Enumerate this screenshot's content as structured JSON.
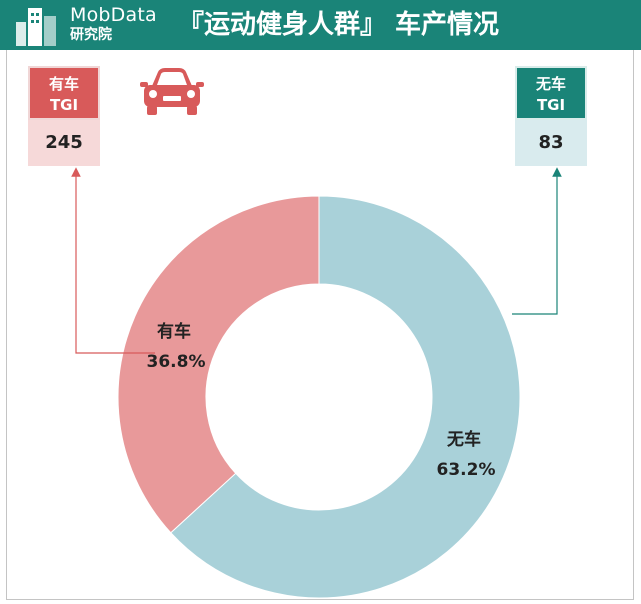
{
  "header": {
    "logo_name": "MobData",
    "logo_sub": "研究院",
    "title": "『运动健身人群』 车产情况"
  },
  "tgi": {
    "has_car": {
      "label_line1": "有车",
      "label_line2": "TGI",
      "value": "245"
    },
    "no_car": {
      "label_line1": "无车",
      "label_line2": "TGI",
      "value": "83"
    }
  },
  "icons": {
    "logo": "building-logo-icon",
    "car": "car-icon"
  },
  "colors": {
    "header_bg": "#1a8478",
    "has_car": "#e8999a",
    "no_car": "#a9d1d9",
    "has_car_accent": "#d85a5a",
    "no_car_accent": "#1a8478"
  },
  "chart_data": {
    "type": "pie",
    "donut": true,
    "series": [
      {
        "name": "有车",
        "value": 36.8,
        "label": "36.8%",
        "color": "#e8999a"
      },
      {
        "name": "无车",
        "value": 63.2,
        "label": "63.2%",
        "color": "#a9d1d9"
      }
    ],
    "start": "top",
    "direction": "clockwise",
    "first_slice": "无车"
  }
}
